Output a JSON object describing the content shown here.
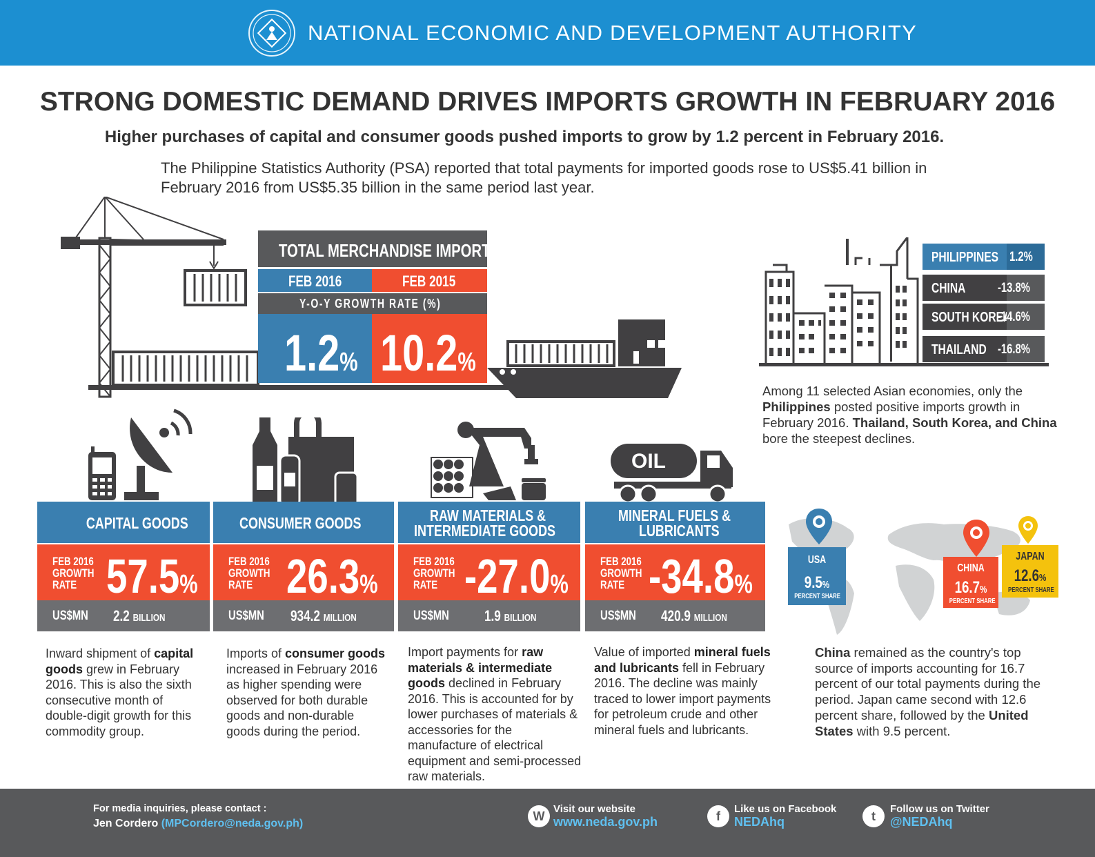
{
  "header": {
    "org_name": "NATIONAL ECONOMIC AND DEVELOPMENT AUTHORITY",
    "logo_icon": "neda-seal-icon"
  },
  "title": "STRONG DOMESTIC DEMAND DRIVES IMPORTS GROWTH IN FEBRUARY 2016",
  "subtitle": "Higher purchases of capital and consumer goods pushed imports to grow by 1.2 percent in February 2016.",
  "intro": "The Philippine Statistics Authority (PSA) reported that total payments for imported goods rose to US$5.41 billion in February 2016 from US$5.35 billion in the same period last year.",
  "total_imports": {
    "heading": "TOTAL MERCHANDISE IMPORTS",
    "col1": "FEB 2016",
    "col2": "FEB 2015",
    "rate_label": "Y-O-Y GROWTH RATE (%)",
    "val1": "1.2",
    "val2": "10.2",
    "pct": "%",
    "colors": {
      "blue": "#3a7fb0",
      "red": "#f04e30",
      "gray": "#58595b"
    }
  },
  "country_growth": [
    {
      "name": "PHILIPPINES",
      "value": "1.2%",
      "highlight": true
    },
    {
      "name": "CHINA",
      "value": "-13.8%",
      "highlight": false
    },
    {
      "name": "SOUTH KOREA",
      "value": "-14.6%",
      "highlight": false
    },
    {
      "name": "THAILAND",
      "value": "-16.8%",
      "highlight": false
    }
  ],
  "asia_note": {
    "p1": "Among 11 selected Asian economies, only the ",
    "b1": "Philippines",
    "p2": " posted positive imports growth in February 2016. ",
    "b2": "Thailand, South Korea, and China",
    "p3": " bore the steepest declines."
  },
  "goods": [
    {
      "name": "CAPITAL GOODS",
      "rate_label": [
        "FEB 2016",
        "GROWTH",
        "RATE"
      ],
      "rate": "57.5",
      "pct": "%",
      "amount_label": "US$MN",
      "amount": "2.2",
      "unit": "BILLION",
      "desc": {
        "p1": "Inward shipment of ",
        "b1": "capital goods",
        "p2": " grew in February 2016. This is also the sixth consecutive month of double-digit growth for this commodity group."
      }
    },
    {
      "name": "CONSUMER GOODS",
      "rate_label": [
        "FEB 2016",
        "GROWTH",
        "RATE"
      ],
      "rate": "26.3",
      "pct": "%",
      "amount_label": "US$MN",
      "amount": "934.2",
      "unit": "MILLION",
      "desc": {
        "p1": "Imports of ",
        "b1": "consumer goods",
        "p2": " increased in February 2016 as higher spending were observed for both durable goods and non-durable goods during the period."
      }
    },
    {
      "name_lines": [
        "RAW MATERIALS &",
        "INTERMEDIATE GOODS"
      ],
      "rate_label": [
        "FEB 2016",
        "GROWTH",
        "RATE"
      ],
      "rate": "-27.0",
      "pct": "%",
      "amount_label": "US$MN",
      "amount": "1.9",
      "unit": "BILLION",
      "desc": {
        "p1": "Import payments for ",
        "b1": "raw materials & intermediate goods",
        "p2": " declined in February 2016. This is accounted for by lower purchases of materials & accessories for the manufacture of electrical equipment and semi-processed raw materials."
      }
    },
    {
      "name_lines": [
        "MINERAL FUELS &",
        "LUBRICANTS"
      ],
      "rate_label": [
        "FEB 2016",
        "GROWTH",
        "RATE"
      ],
      "rate": "-34.8",
      "pct": "%",
      "amount_label": "US$MN",
      "amount": "420.9",
      "unit": "MILLION",
      "desc": {
        "p1": "Value of imported ",
        "b1": "mineral fuels and lubricants",
        "p2": " fell in February 2016. The decline was mainly traced to lower import payments for petroleum crude and other mineral fuels and lubricants."
      }
    }
  ],
  "truck_label": "OIL",
  "map": {
    "usa": {
      "name": "USA",
      "value": "9.5",
      "pct": "%",
      "label": "PERCENT SHARE",
      "color": "#3a7fb0"
    },
    "china": {
      "name": "CHINA",
      "value": "16.7",
      "pct": "%",
      "label": "PERCENT SHARE",
      "color": "#f04e30"
    },
    "japan": {
      "name": "JAPAN",
      "value": "12.6",
      "pct": "%",
      "label": "PERCENT SHARE",
      "color": "#f4c20d"
    }
  },
  "top_source_desc": {
    "b1": "China",
    "p1": " remained as the country's top source of imports accounting for 16.7 percent of our total payments during the period. Japan came second with 12.6 percent share, followed by the ",
    "b2": "United States",
    "p2": " with 9.5 percent."
  },
  "footer": {
    "media_label": "For media inquiries, please contact :",
    "contact_name": "Jen Cordero ",
    "contact_email": "(MPCordero@neda.gov.ph)",
    "website_label": "Visit our website",
    "website_url": "www.neda.gov.ph",
    "website_icon": "W",
    "facebook_label": "Like us on Facebook",
    "facebook_handle": "NEDAhq",
    "facebook_icon": "f",
    "twitter_label": "Follow us on Twitter",
    "twitter_handle": "@NEDAhq",
    "twitter_icon": "t"
  }
}
